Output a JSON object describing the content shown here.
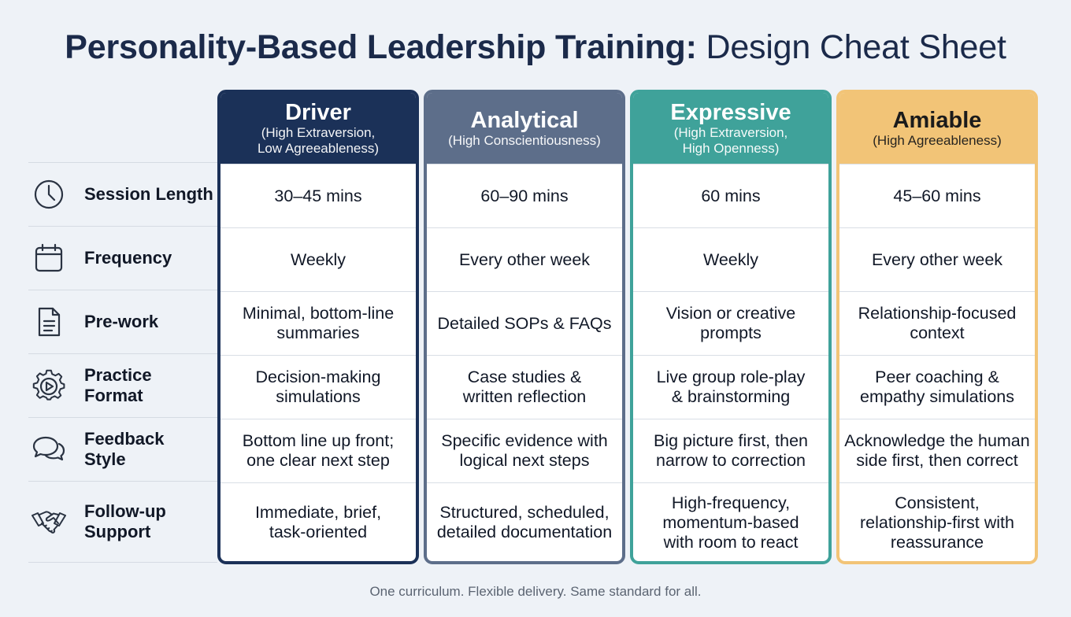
{
  "title": {
    "bold": "Personality-Based Leadership Training:",
    "light": " Design Cheat Sheet"
  },
  "rows": [
    {
      "label": "Session Length",
      "icon": "clock-icon"
    },
    {
      "label": "Frequency",
      "icon": "calendar-icon"
    },
    {
      "label": "Pre-work",
      "icon": "document-icon"
    },
    {
      "label": "Practice\nFormat",
      "icon": "gear-play-icon"
    },
    {
      "label": "Feedback\nStyle",
      "icon": "chat-bubbles-icon"
    },
    {
      "label": "Follow-up\nSupport",
      "icon": "handshake-icon"
    }
  ],
  "columns": [
    {
      "name": "Driver",
      "subtitle": "(High Extraversion,\nLow Agreeableness)",
      "color": "#1b3158",
      "cells": [
        "30–45 mins",
        "Weekly",
        "Minimal, bottom-line\nsummaries",
        "Decision-making\nsimulations",
        "Bottom line up front;\none clear next step",
        "Immediate, brief,\ntask-oriented"
      ]
    },
    {
      "name": "Analytical",
      "subtitle": "(High Conscientiousness)",
      "color": "#5d6e8a",
      "cells": [
        "60–90 mins",
        "Every other week",
        "Detailed SOPs & FAQs",
        "Case studies &\nwritten reflection",
        "Specific evidence with\nlogical next steps",
        "Structured, scheduled,\ndetailed documentation"
      ]
    },
    {
      "name": "Expressive",
      "subtitle": "(High Extraversion,\nHigh Openness)",
      "color": "#3fa29a",
      "cells": [
        "60 mins",
        "Weekly",
        "Vision or creative\nprompts",
        "Live group role-play\n& brainstorming",
        "Big picture first, then\nnarrow to correction",
        "High-frequency,\nmomentum-based\nwith room to react"
      ]
    },
    {
      "name": "Amiable",
      "subtitle": "(High Agreeableness)",
      "color": "#f2c477",
      "text_color": "#1b1b1b",
      "cells": [
        "45–60 mins",
        "Every other week",
        "Relationship-focused\ncontext",
        "Peer coaching &\nempathy simulations",
        "Acknowledge the human\nside first, then correct",
        "Consistent,\nrelationship-first with\nreassurance"
      ]
    }
  ],
  "footer": "One curriculum. Flexible delivery. Same standard for all."
}
